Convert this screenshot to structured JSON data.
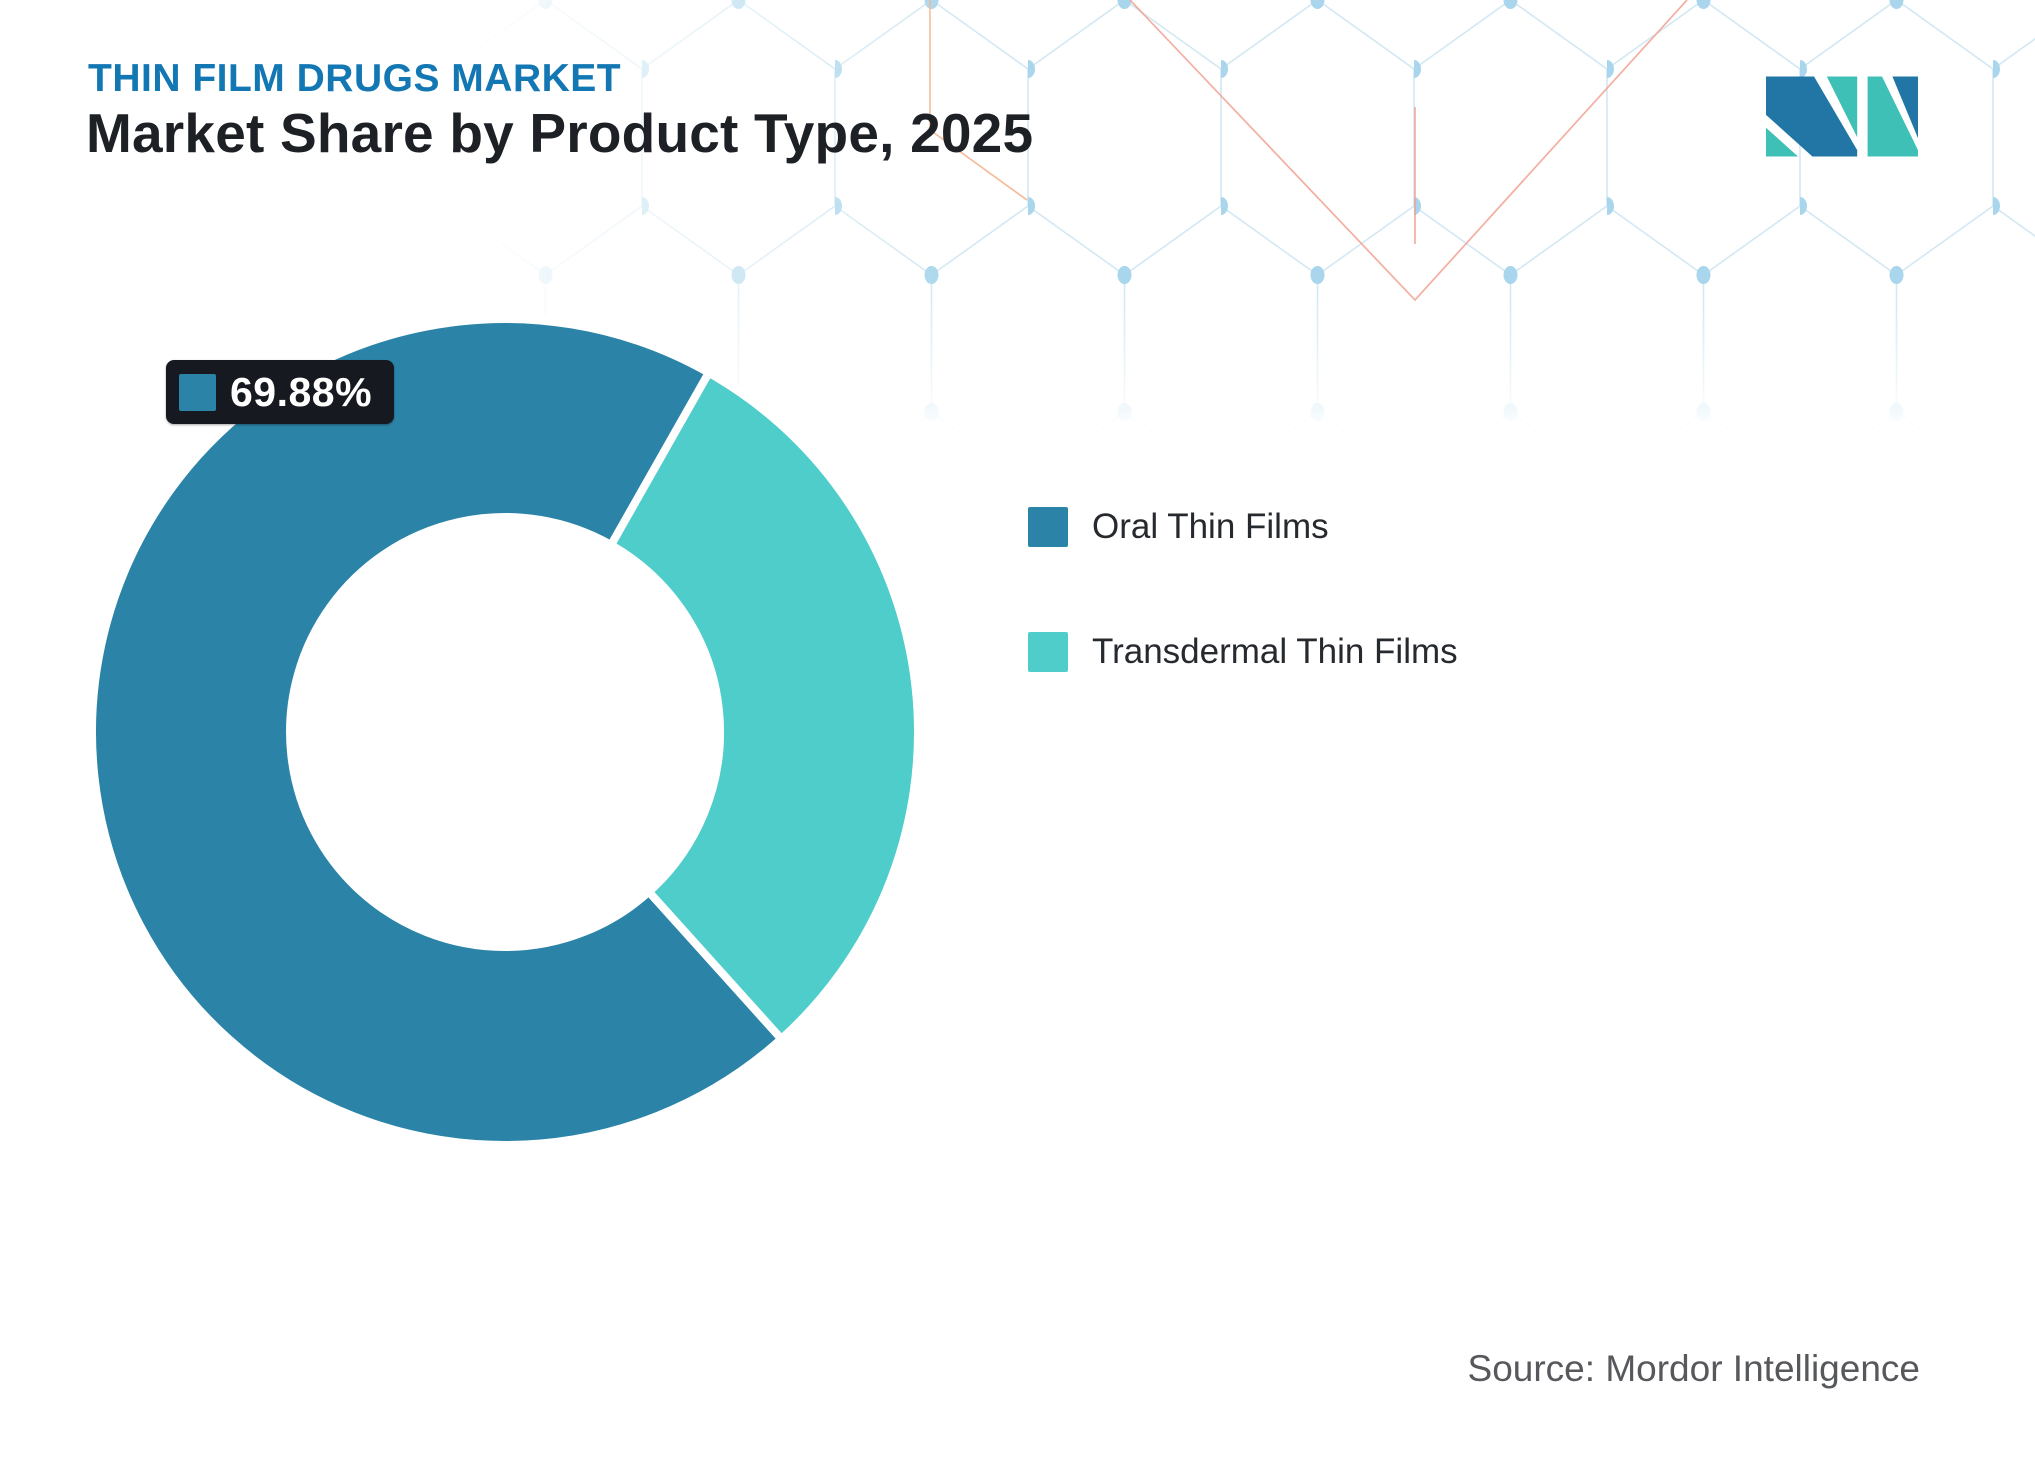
{
  "header": {
    "eyebrow": "THIN FILM DRUGS MARKET",
    "title": "Market Share by Product Type, 2025"
  },
  "logo": {
    "name": "mordor-intelligence-logo",
    "blue": "#2176a5",
    "teal": "#3fc0b6"
  },
  "chart_data": {
    "type": "pie",
    "subtype": "donut",
    "title": "Market Share by Product Type, 2025",
    "categories": [
      "Oral Thin Films",
      "Transdermal Thin Films"
    ],
    "series": [
      {
        "name": "Oral Thin Films",
        "value": 69.88,
        "color": "#2b84a8",
        "data_label": "69.88%"
      },
      {
        "name": "Transdermal Thin Films",
        "value": 30.12,
        "color": "#4ecdca",
        "data_label": ""
      }
    ],
    "units": "percent",
    "legend_position": "right",
    "donut_start_angle_deg": 138,
    "inner_radius_ratio": 0.52,
    "slice_border_color": "#ffffff",
    "visible_data_label": "69.88%"
  },
  "footer": {
    "source": "Source: Mordor Intelligence"
  },
  "decor": {
    "hex_line_color": "#d2e8f3",
    "hex_dot_color": "#a9d6ec",
    "accent_line_color": "#f2a091"
  }
}
